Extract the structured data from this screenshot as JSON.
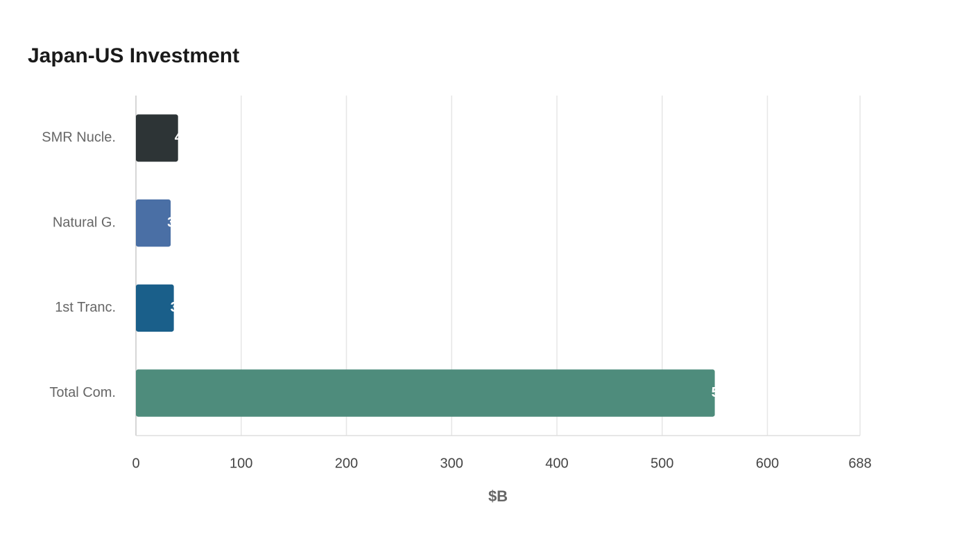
{
  "chart_data": {
    "type": "bar",
    "orientation": "horizontal",
    "title": "Japan-US Investment",
    "x_label": "$B",
    "categories": [
      "SMR Nucle.",
      "Natural G.",
      "1st Tranc.",
      "Total Com."
    ],
    "values": [
      40,
      33,
      36,
      550
    ],
    "colors": [
      "#2d3436",
      "#4a6fa5",
      "#1a5f8a",
      "#4e8c7c"
    ],
    "xlim": [
      0,
      688
    ],
    "xticks": [
      0,
      100,
      200,
      300,
      400,
      500,
      600,
      688
    ],
    "grid": true
  }
}
